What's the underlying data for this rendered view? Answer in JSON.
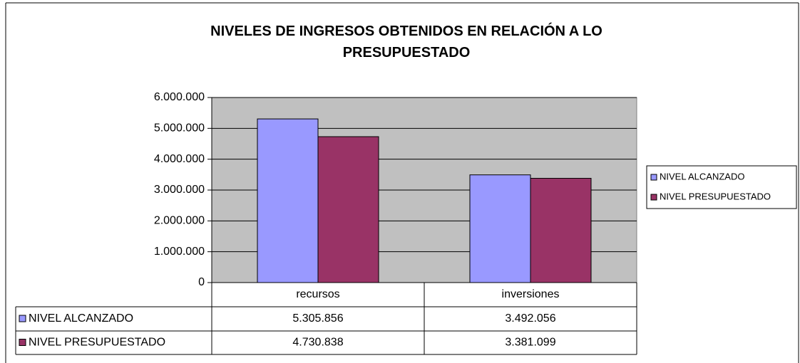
{
  "chart_data": {
    "type": "bar",
    "title": "NIVELES DE INGRESOS OBTENIDOS EN RELACIÓN A LO PRESUPUESTADO",
    "categories": [
      "recursos",
      "inversiones"
    ],
    "series": [
      {
        "name": "NIVEL ALCANZADO",
        "color": "#9999ff",
        "values": [
          5305856,
          3492056
        ],
        "value_labels": [
          "5.305.856",
          "3.492.056"
        ]
      },
      {
        "name": "NIVEL PRESUPUESTADO",
        "color": "#993366",
        "values": [
          4730838,
          3381099
        ],
        "value_labels": [
          "4.730.838",
          "3.381.099"
        ]
      }
    ],
    "ylim": [
      0,
      6000000
    ],
    "yticks": [
      0,
      {
        "value": 1000000,
        "label": "1.000.000"
      },
      {
        "value": 2000000,
        "label": "2.000.000"
      },
      {
        "value": 3000000,
        "label": "3.000.000"
      },
      {
        "value": 4000000,
        "label": "4.000.000"
      },
      {
        "value": 5000000,
        "label": "5.000.000"
      },
      {
        "value": 6000000,
        "label": "6.000.000"
      }
    ],
    "grid": true,
    "plot_background": "#c0c0c0",
    "legend": "right"
  }
}
